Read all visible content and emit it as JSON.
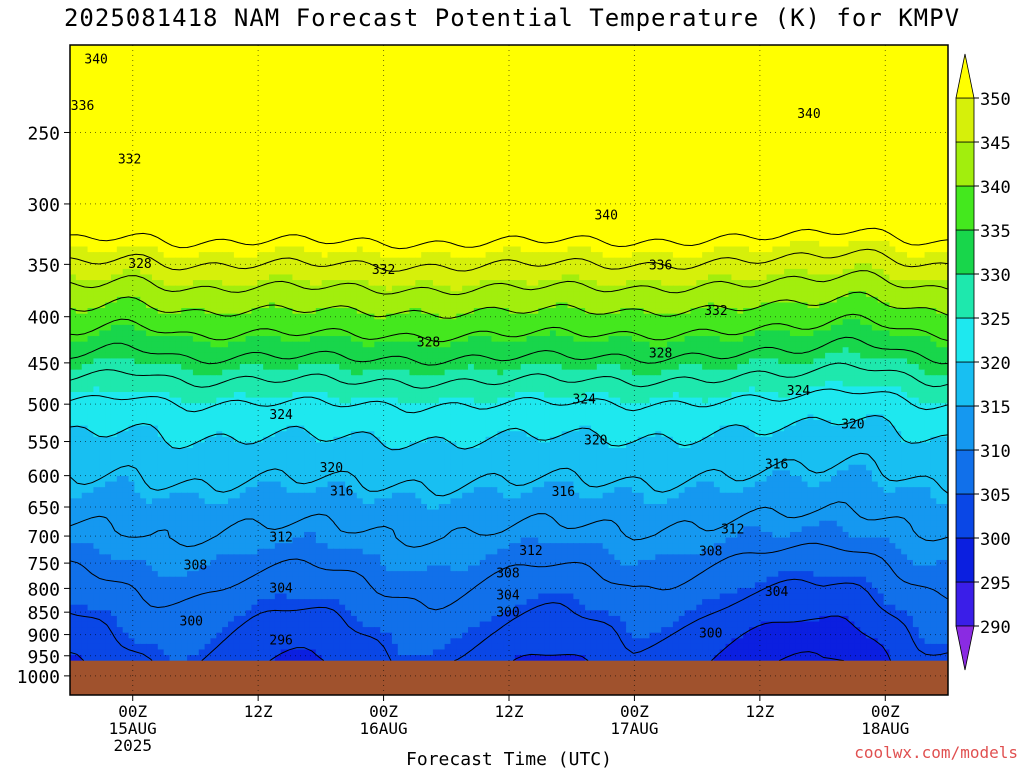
{
  "page": {
    "title": "2025081418 NAM Forecast Potential Temperature (K) for KMPV",
    "credit": "coolwx.com/models"
  },
  "chart_data": {
    "type": "heatmap",
    "title": "2025081418 NAM Forecast Potential Temperature (K) for KMPV",
    "xlabel": "Forecast Time (UTC)",
    "ylabel": "",
    "x_range_hours": [
      -6,
      78
    ],
    "x_ticks": [
      {
        "hour": 0,
        "lines": [
          "00Z",
          "15AUG",
          "2025"
        ]
      },
      {
        "hour": 12,
        "lines": [
          "12Z"
        ]
      },
      {
        "hour": 24,
        "lines": [
          "00Z",
          "16AUG"
        ]
      },
      {
        "hour": 36,
        "lines": [
          "12Z"
        ]
      },
      {
        "hour": 48,
        "lines": [
          "00Z",
          "17AUG"
        ]
      },
      {
        "hour": 60,
        "lines": [
          "12Z"
        ]
      },
      {
        "hour": 72,
        "lines": [
          "00Z",
          "18AUG"
        ]
      }
    ],
    "y_range_hpa": [
      1050,
      200
    ],
    "y_ticks": [
      250,
      300,
      350,
      400,
      450,
      500,
      550,
      600,
      650,
      700,
      750,
      800,
      850,
      900,
      950,
      1000
    ],
    "ground_pressure_hpa": 962,
    "colorbar": {
      "levels": [
        290,
        295,
        300,
        305,
        310,
        315,
        320,
        325,
        330,
        335,
        340,
        345,
        350
      ],
      "colors": [
        "#8a2be2",
        "#3a1ee8",
        "#0b1fe0",
        "#0a47e6",
        "#1170ea",
        "#1598f0",
        "#18bff2",
        "#1ee8ef",
        "#1ee8ad",
        "#18d64b",
        "#44e81e",
        "#a2ee0d",
        "#d6f00a",
        "#ffff00"
      ]
    },
    "contour_interval": 4,
    "contour_label_values": [
      296,
      300,
      304,
      308,
      312,
      316,
      320,
      324,
      328,
      332,
      336,
      340
    ],
    "contour_labels": [
      {
        "text": "340",
        "hour": -3.5,
        "p": 207
      },
      {
        "text": "336",
        "hour": -4.8,
        "p": 233
      },
      {
        "text": "332",
        "hour": -0.3,
        "p": 267
      },
      {
        "text": "328",
        "hour": 0.7,
        "p": 349
      },
      {
        "text": "332",
        "hour": 24,
        "p": 354
      },
      {
        "text": "328",
        "hour": 28.3,
        "p": 426
      },
      {
        "text": "324",
        "hour": 14.2,
        "p": 513
      },
      {
        "text": "320",
        "hour": 19,
        "p": 587
      },
      {
        "text": "316",
        "hour": 20,
        "p": 623
      },
      {
        "text": "312",
        "hour": 14.2,
        "p": 701
      },
      {
        "text": "308",
        "hour": 6,
        "p": 753
      },
      {
        "text": "304",
        "hour": 14.2,
        "p": 798
      },
      {
        "text": "300",
        "hour": 5.6,
        "p": 868
      },
      {
        "text": "296",
        "hour": 14.2,
        "p": 911
      },
      {
        "text": "340",
        "hour": 45.3,
        "p": 308
      },
      {
        "text": "336",
        "hour": 50.5,
        "p": 350
      },
      {
        "text": "332",
        "hour": 55.8,
        "p": 393
      },
      {
        "text": "328",
        "hour": 50.5,
        "p": 438
      },
      {
        "text": "324",
        "hour": 43.2,
        "p": 493
      },
      {
        "text": "320",
        "hour": 44.3,
        "p": 547
      },
      {
        "text": "316",
        "hour": 41.2,
        "p": 624
      },
      {
        "text": "312",
        "hour": 38.1,
        "p": 725
      },
      {
        "text": "308",
        "hour": 35.9,
        "p": 768
      },
      {
        "text": "304",
        "hour": 35.9,
        "p": 813
      },
      {
        "text": "300",
        "hour": 35.9,
        "p": 849
      },
      {
        "text": "340",
        "hour": 64.7,
        "p": 238
      },
      {
        "text": "324",
        "hour": 63.7,
        "p": 482
      },
      {
        "text": "320",
        "hour": 68.9,
        "p": 525
      },
      {
        "text": "316",
        "hour": 61.6,
        "p": 582
      },
      {
        "text": "312",
        "hour": 57.4,
        "p": 687
      },
      {
        "text": "308",
        "hour": 55.3,
        "p": 726
      },
      {
        "text": "304",
        "hour": 61.6,
        "p": 805
      },
      {
        "text": "300",
        "hour": 55.3,
        "p": 895
      }
    ]
  }
}
